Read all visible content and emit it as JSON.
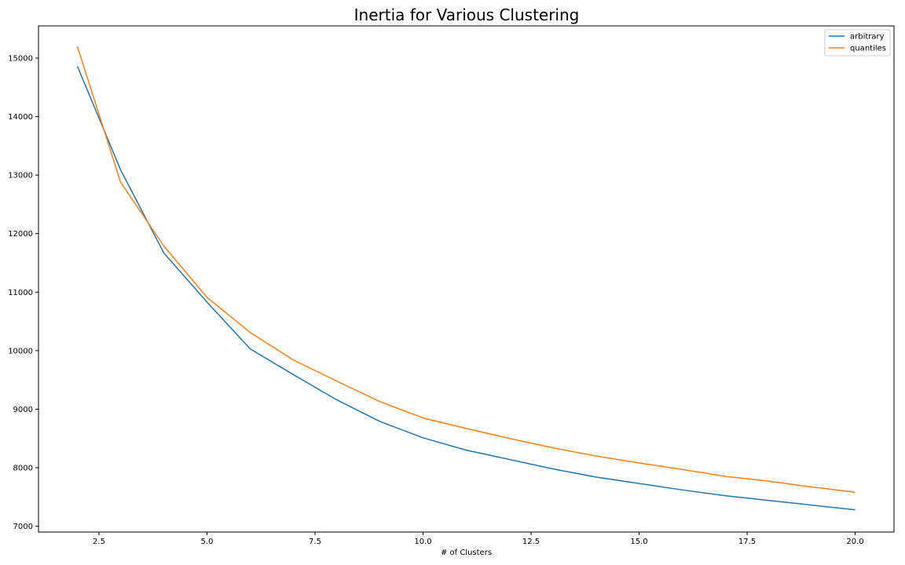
{
  "chart_data": {
    "type": "line",
    "title": "Inertia for Various Clustering",
    "xlabel": "# of Clusters",
    "ylabel": "",
    "xlim": [
      1.1,
      20.9
    ],
    "ylim": [
      6900,
      15550
    ],
    "xticks": [
      2.5,
      5.0,
      7.5,
      10.0,
      12.5,
      15.0,
      17.5,
      20.0
    ],
    "xtick_labels": [
      "2.5",
      "5.0",
      "7.5",
      "10.0",
      "12.5",
      "15.0",
      "17.5",
      "20.0"
    ],
    "yticks": [
      7000,
      8000,
      9000,
      10000,
      11000,
      12000,
      13000,
      14000,
      15000
    ],
    "ytick_labels": [
      "7000",
      "8000",
      "9000",
      "10000",
      "11000",
      "12000",
      "13000",
      "14000",
      "15000"
    ],
    "grid": false,
    "legend_position": "top-right",
    "x": [
      2,
      3,
      4,
      5,
      6,
      7,
      8,
      9,
      10,
      11,
      12,
      13,
      14,
      15,
      16,
      17,
      18,
      19,
      20
    ],
    "series": [
      {
        "name": "arbitrary",
        "color": "#1f77b4",
        "values": [
          14860,
          13090,
          11670,
          10830,
          10030,
          9590,
          9160,
          8790,
          8510,
          8300,
          8140,
          7980,
          7840,
          7730,
          7620,
          7520,
          7440,
          7360,
          7280
        ]
      },
      {
        "name": "quantiles",
        "color": "#ff7f0e",
        "values": [
          15200,
          12880,
          11790,
          10910,
          10310,
          9840,
          9480,
          9130,
          8850,
          8670,
          8500,
          8340,
          8200,
          8080,
          7970,
          7850,
          7770,
          7670,
          7580
        ]
      }
    ]
  }
}
